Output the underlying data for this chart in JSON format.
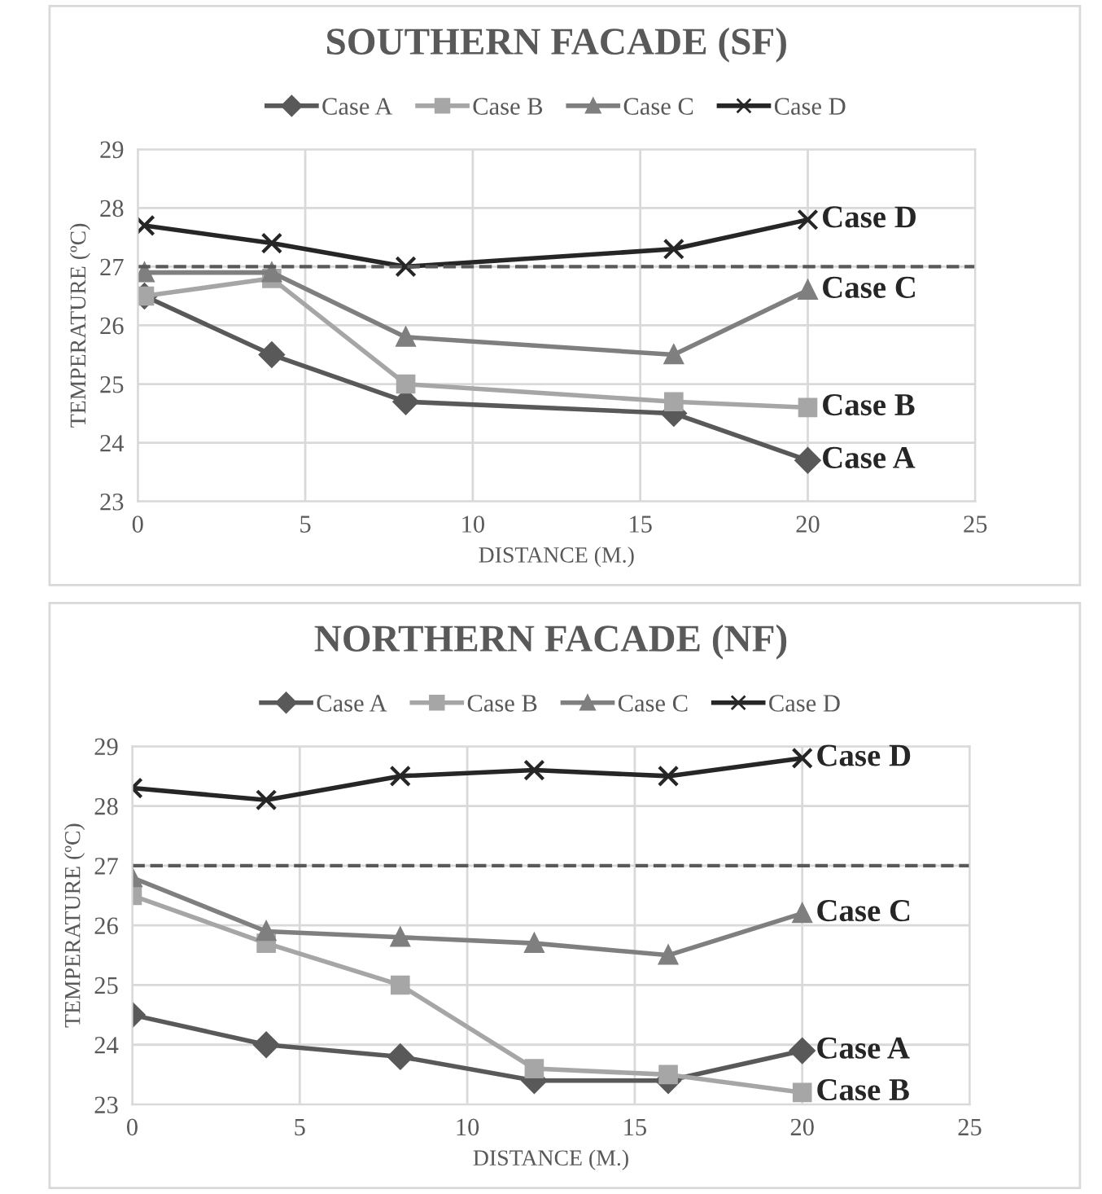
{
  "chart_data": [
    {
      "type": "line",
      "title": "SOUTHERN FACADE (SF)",
      "xlabel": "DISTANCE (M.)",
      "ylabel": "TEMPERATURE (ºC)",
      "xlim": [
        0,
        25
      ],
      "xticks": [
        0,
        5,
        10,
        15,
        20,
        25
      ],
      "ylim": [
        23,
        29
      ],
      "yticks": [
        23,
        24,
        25,
        26,
        27,
        28,
        29
      ],
      "grid": true,
      "legend": "top",
      "series": [
        {
          "name": "Case A",
          "color": "#595959",
          "marker": "diamond",
          "x": [
            0.2,
            4,
            8,
            16,
            20
          ],
          "values": [
            26.5,
            25.5,
            24.7,
            24.5,
            23.7
          ]
        },
        {
          "name": "Case B",
          "color": "#a6a6a6",
          "marker": "square",
          "x": [
            0.2,
            4,
            8,
            16,
            20
          ],
          "values": [
            26.5,
            26.8,
            25.0,
            24.7,
            24.6
          ]
        },
        {
          "name": "Case C",
          "color": "#7f7f7f",
          "marker": "triangle",
          "x": [
            0.2,
            4,
            8,
            16,
            20
          ],
          "values": [
            26.9,
            26.9,
            25.8,
            25.5,
            26.6
          ]
        },
        {
          "name": "Case D",
          "color": "#262626",
          "marker": "cross",
          "x": [
            0.2,
            4,
            8,
            16,
            20
          ],
          "values": [
            27.7,
            27.4,
            27.0,
            27.3,
            27.8
          ]
        }
      ],
      "ref_lines": [
        {
          "axis": "y",
          "value": 27,
          "color": "#595959",
          "line_style": "dashed"
        }
      ]
    },
    {
      "type": "line",
      "title": "NORTHERN FACADE (NF)",
      "xlabel": "DISTANCE (M.)",
      "ylabel": "TEMPERATURE (ºC)",
      "xlim": [
        0,
        25
      ],
      "xticks": [
        0,
        5,
        10,
        15,
        20,
        25
      ],
      "ylim": [
        23,
        29
      ],
      "yticks": [
        23,
        24,
        25,
        26,
        27,
        28,
        29
      ],
      "grid": true,
      "legend": "top",
      "series": [
        {
          "name": "Case A",
          "color": "#595959",
          "marker": "diamond",
          "x": [
            0,
            4,
            8,
            12,
            16,
            20
          ],
          "values": [
            24.5,
            24.0,
            23.8,
            23.4,
            23.4,
            23.9
          ]
        },
        {
          "name": "Case B",
          "color": "#a6a6a6",
          "marker": "square",
          "x": [
            0,
            4,
            8,
            12,
            16,
            20
          ],
          "values": [
            26.5,
            25.7,
            25.0,
            23.6,
            23.5,
            23.2
          ]
        },
        {
          "name": "Case C",
          "color": "#7f7f7f",
          "marker": "triangle",
          "x": [
            0,
            4,
            8,
            12,
            16,
            20
          ],
          "values": [
            26.8,
            25.9,
            25.8,
            25.7,
            25.5,
            26.2
          ]
        },
        {
          "name": "Case D",
          "color": "#262626",
          "marker": "cross",
          "x": [
            0,
            4,
            8,
            12,
            16,
            20
          ],
          "values": [
            28.3,
            28.1,
            28.5,
            28.6,
            28.5,
            28.8
          ]
        }
      ],
      "ref_lines": [
        {
          "axis": "y",
          "value": 27,
          "color": "#595959",
          "line_style": "dashed"
        }
      ]
    }
  ]
}
